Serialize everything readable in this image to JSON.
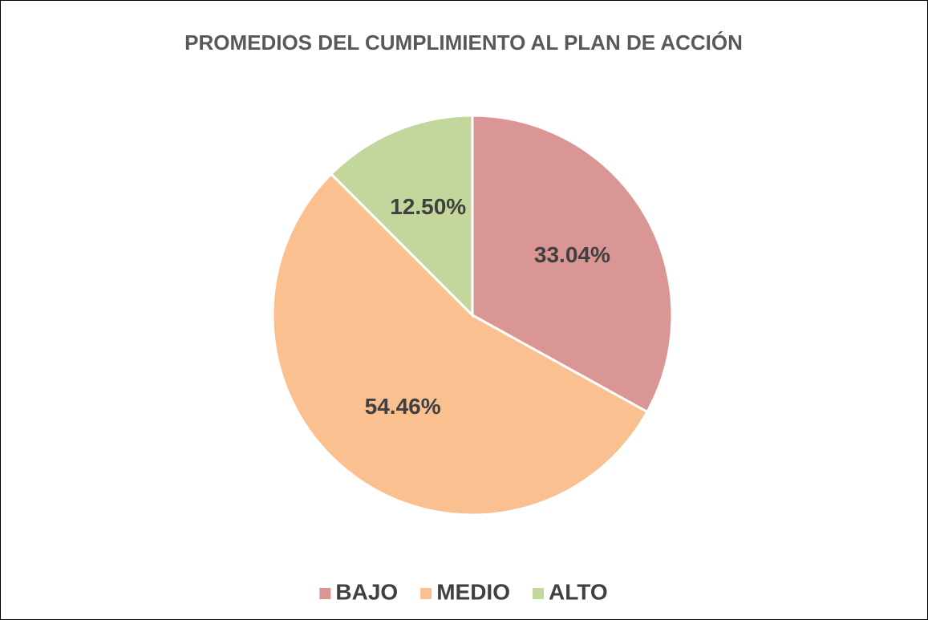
{
  "chart_data": {
    "type": "pie",
    "title": "PROMEDIOS DEL CUMPLIMIENTO AL PLAN DE ACCIÓN",
    "categories": [
      "BAJO",
      "MEDIO",
      "ALTO"
    ],
    "values": [
      33.04,
      54.46,
      12.5
    ],
    "value_labels": [
      "33.04%",
      "54.46%",
      "12.50%"
    ],
    "colors": [
      "#d99694",
      "#fac090",
      "#c3d69b"
    ],
    "legend": "bottom"
  }
}
